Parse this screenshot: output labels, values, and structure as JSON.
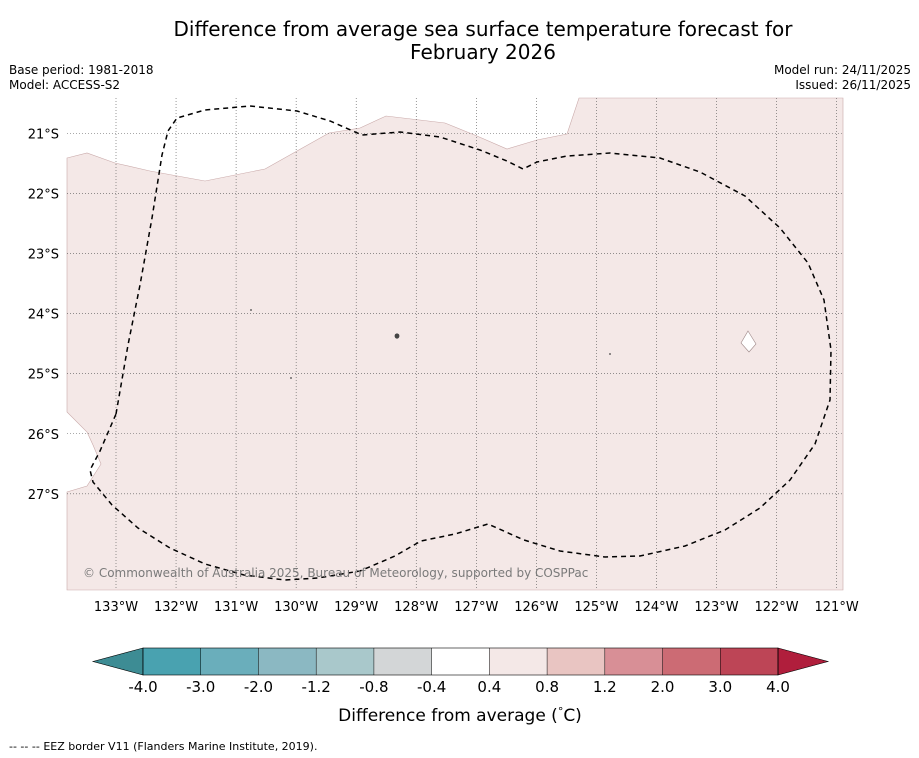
{
  "title": {
    "line1": "Difference from average sea surface temperature forecast for",
    "line2": "February 2026"
  },
  "meta": {
    "base_period": "Base period: 1981-2018",
    "model": "Model: ACCESS-S2",
    "model_run": "Model run: 24/11/2025",
    "issued": "Issued: 26/11/2025"
  },
  "map": {
    "lon_labels": [
      "133°W",
      "132°W",
      "131°W",
      "130°W",
      "129°W",
      "128°W",
      "127°W",
      "126°W",
      "125°W",
      "124°W",
      "123°W",
      "122°W",
      "121°W"
    ],
    "lat_labels": [
      "21°S",
      "22°S",
      "23°S",
      "24°S",
      "25°S",
      "26°S",
      "27°S"
    ],
    "anomaly_fill_color": "#f4e8e7",
    "copyright": "© Commonwealth of Australia 2025, Bureau of Meteorology, supported by COSPPac",
    "eez_border": "EEZ border V11 (Flanders Marine Institute, 2019).",
    "footnote_dash": "-- -- --"
  },
  "colorbar": {
    "title": "Difference from average (°C)",
    "title_prefix": "Difference from average (",
    "title_degree": "°",
    "title_suffix": "C)",
    "tick_labels": [
      "-4.0",
      "-3.0",
      "-2.0",
      "-1.2",
      "-0.8",
      "-0.4",
      "0.4",
      "0.8",
      "1.2",
      "2.0",
      "3.0",
      "4.0"
    ],
    "colors": [
      "#3d8c94",
      "#49a2b0",
      "#6aaebb",
      "#8bb8c2",
      "#a9c8cb",
      "#d3d6d7",
      "#ffffff",
      "#f4e8e7",
      "#e9c5c2",
      "#d88f96",
      "#cc6b74",
      "#bd4556",
      "#b01e3c"
    ]
  }
}
